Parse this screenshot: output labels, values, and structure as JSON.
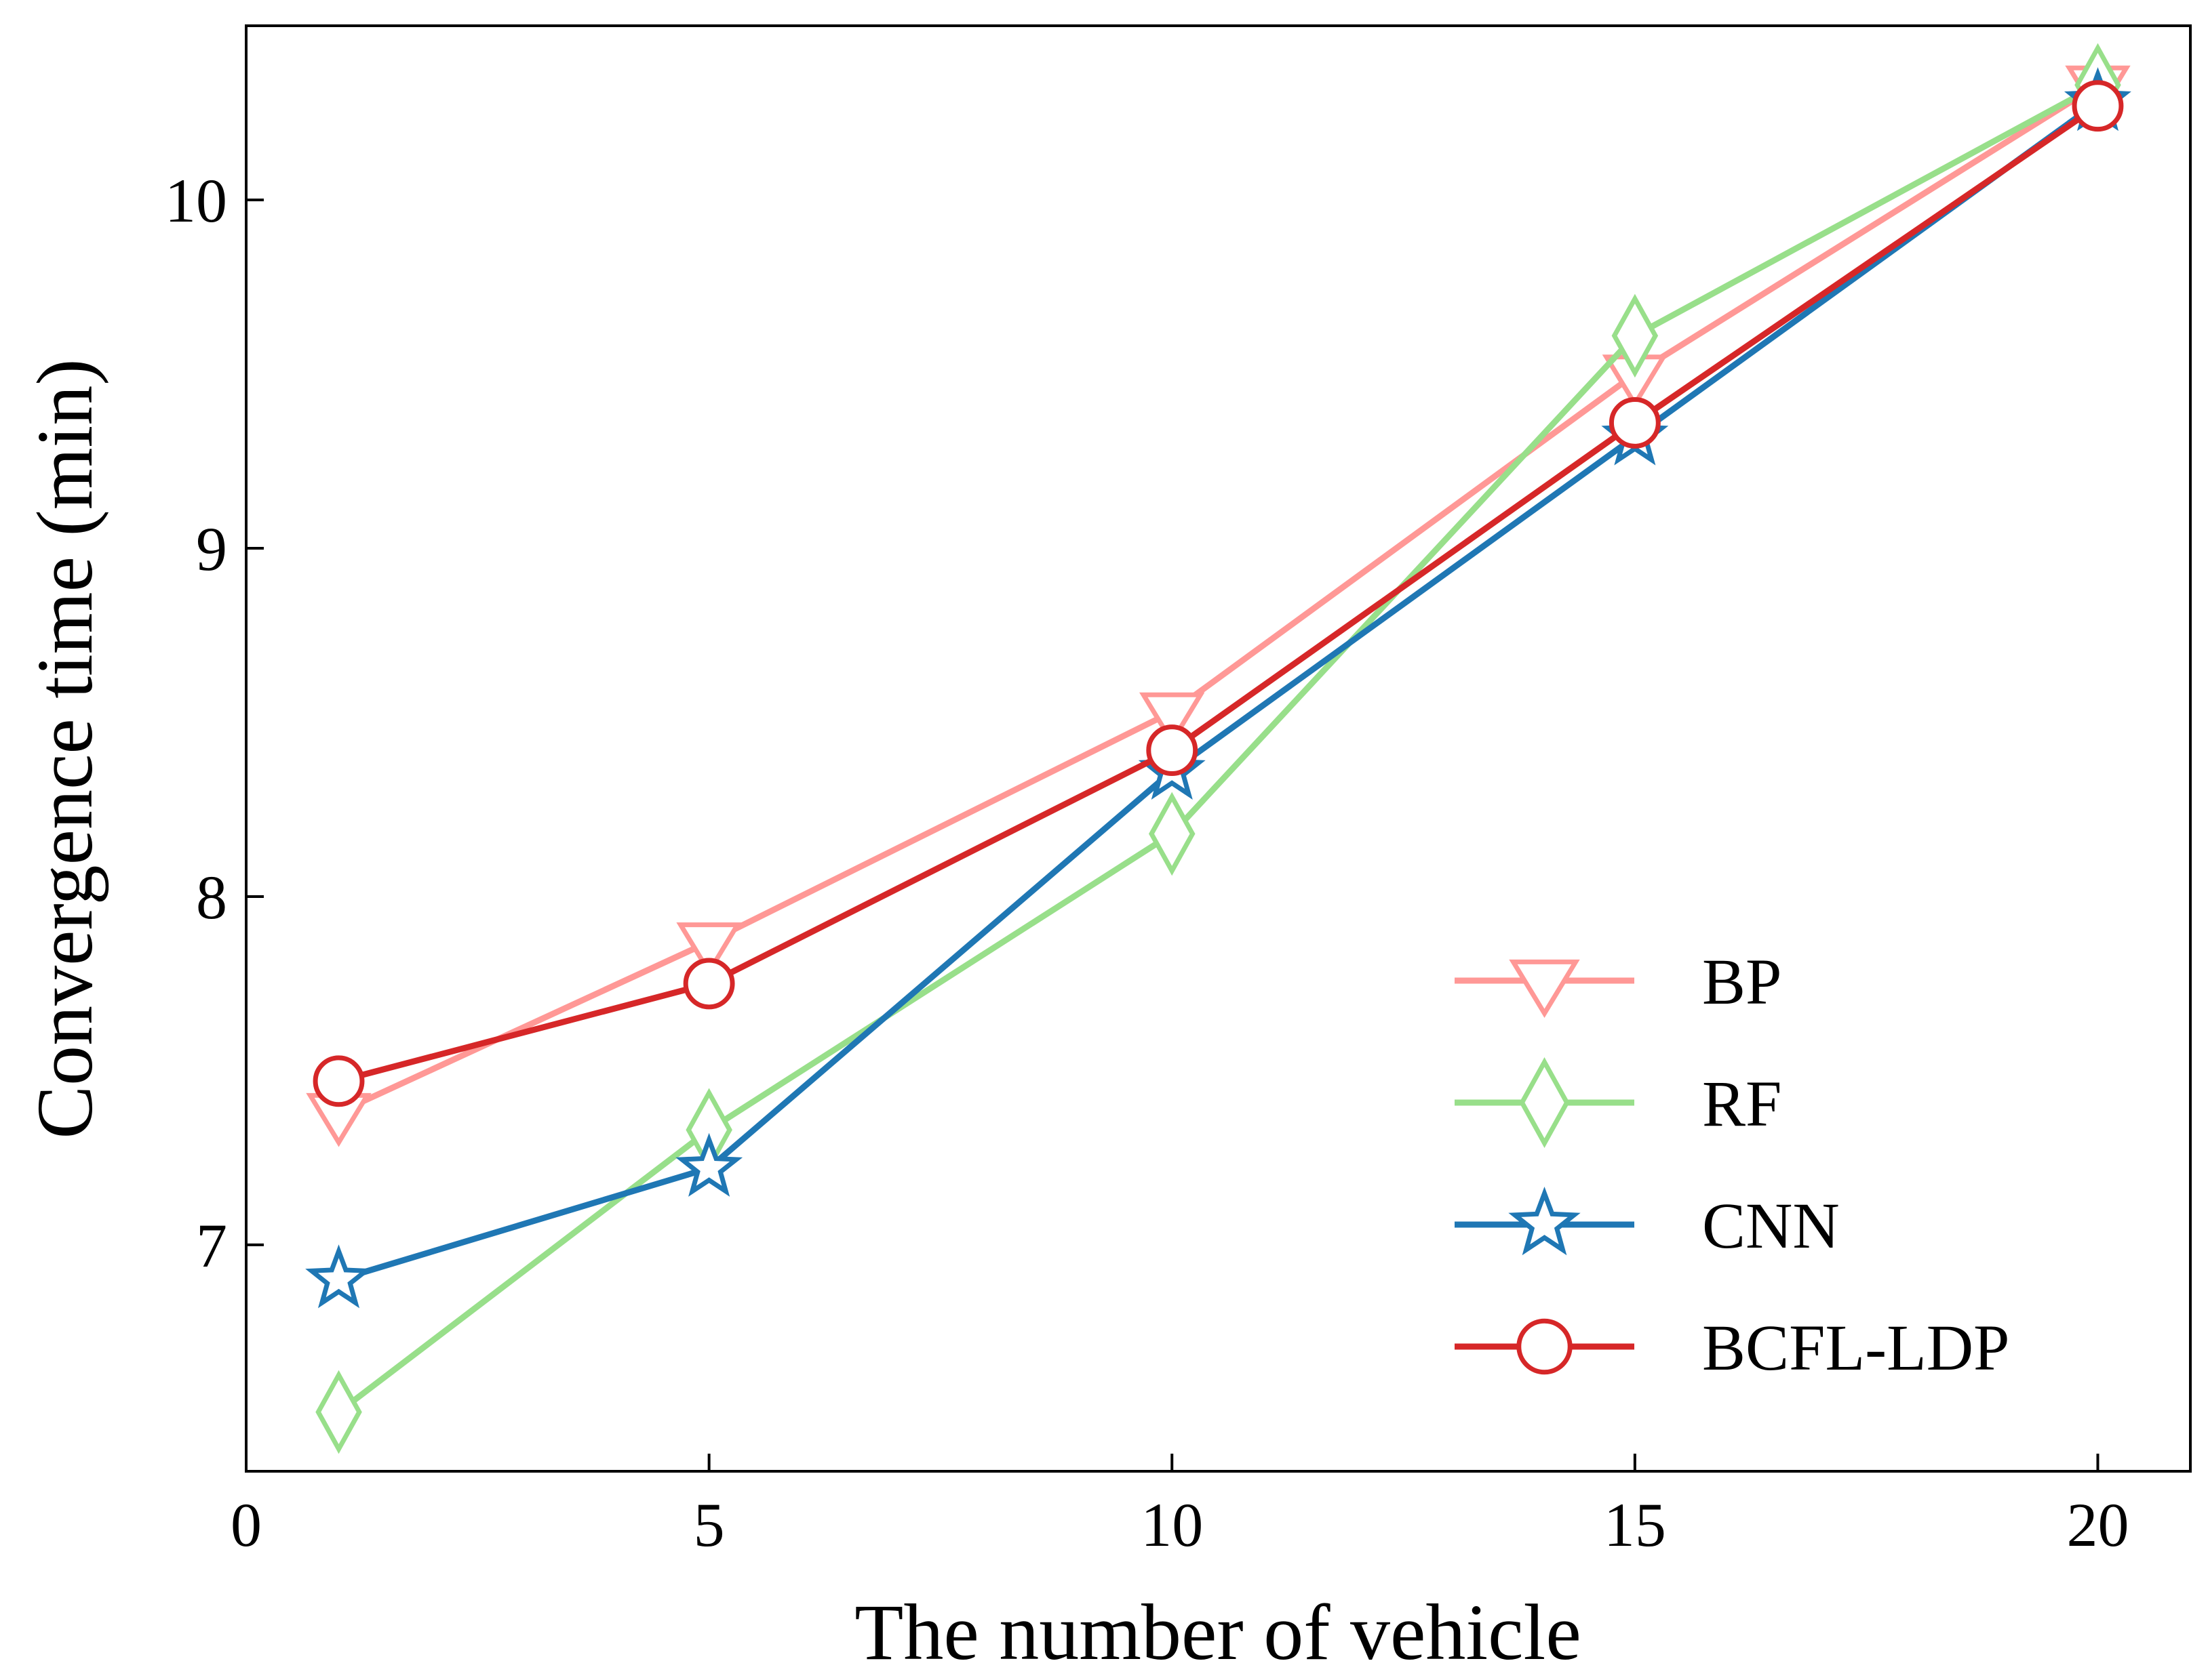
{
  "chart_data": {
    "type": "line",
    "title": "",
    "xlabel": "The number of vehicle",
    "ylabel": "Convergence time (min)",
    "xlim": [
      0,
      21
    ],
    "ylim": [
      6.35,
      10.5
    ],
    "xticks": [
      0,
      5,
      10,
      15,
      20
    ],
    "yticks": [
      7,
      8,
      9,
      10
    ],
    "x": [
      1,
      5,
      10,
      15,
      20
    ],
    "legend_position": "lower-right",
    "series": [
      {
        "name": "BP",
        "marker": "triangle-down",
        "color": "#ff9896",
        "values": [
          7.38,
          7.87,
          8.53,
          9.5,
          10.33
        ]
      },
      {
        "name": "RF",
        "marker": "diamond",
        "color": "#98df8a",
        "values": [
          6.52,
          7.33,
          8.18,
          9.61,
          10.33
        ]
      },
      {
        "name": "CNN",
        "marker": "star",
        "color": "#1f77b4",
        "values": [
          6.9,
          7.22,
          8.36,
          9.32,
          10.28
        ]
      },
      {
        "name": "BCFL-LDP",
        "marker": "circle",
        "color": "#d62728",
        "values": [
          7.47,
          7.75,
          8.42,
          9.36,
          10.27
        ]
      }
    ]
  }
}
